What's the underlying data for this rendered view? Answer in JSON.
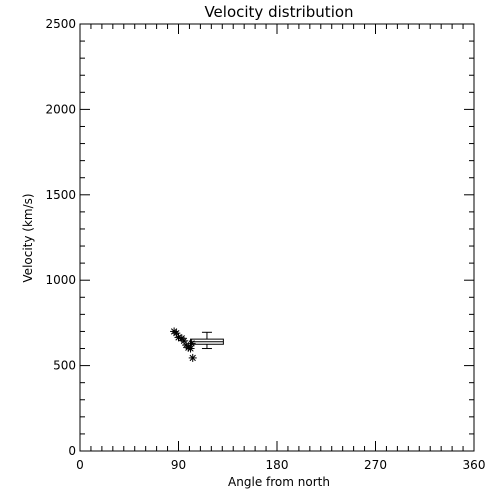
{
  "chart_data": {
    "type": "scatter",
    "title": "Velocity distribution",
    "xlabel": "Angle from north",
    "ylabel": "Velocity (km/s)",
    "xlim": [
      0,
      360
    ],
    "ylim": [
      0,
      2500
    ],
    "x_ticks": [
      0,
      90,
      180,
      270,
      360
    ],
    "y_ticks": [
      0,
      500,
      1000,
      1500,
      2000,
      2500
    ],
    "x_minor_step": 10,
    "y_minor_step": 100,
    "grid": false,
    "points": [
      {
        "x": 86,
        "y": 700
      },
      {
        "x": 88,
        "y": 690
      },
      {
        "x": 90,
        "y": 665
      },
      {
        "x": 93,
        "y": 660
      },
      {
        "x": 95,
        "y": 645
      },
      {
        "x": 97,
        "y": 620
      },
      {
        "x": 99,
        "y": 605
      },
      {
        "x": 101,
        "y": 600
      },
      {
        "x": 102,
        "y": 630
      },
      {
        "x": 103,
        "y": 545
      }
    ],
    "box": {
      "x_low": 101,
      "x_high": 131,
      "q1": 625,
      "q3": 655,
      "median": 640,
      "whisker_low": 600,
      "whisker_high": 695,
      "whisker_x": 116
    },
    "marker": "asterisk",
    "color": "#000000"
  }
}
